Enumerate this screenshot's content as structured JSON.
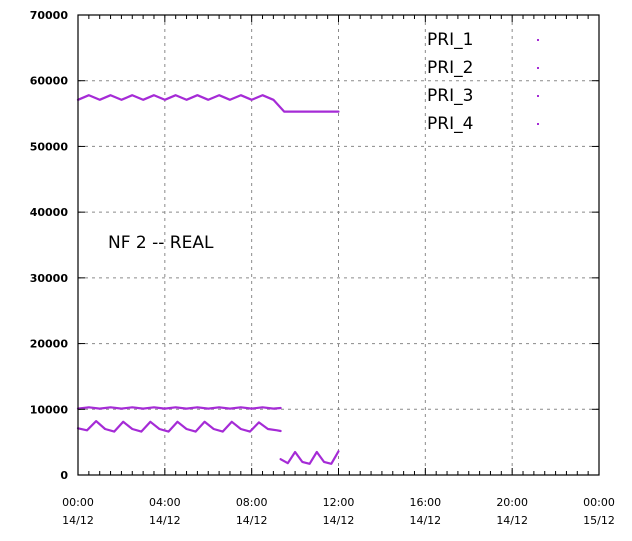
{
  "chart_data": {
    "type": "line",
    "title": "",
    "xlabel": "",
    "ylabel": "",
    "annotation": "NF 2 -- REAL",
    "ylim": [
      0,
      70000
    ],
    "y_ticks": [
      "0",
      "10000",
      "20000",
      "30000",
      "40000",
      "50000",
      "60000",
      "70000"
    ],
    "xlim_hours": [
      0,
      48
    ],
    "x_ticks": [
      {
        "time": "00:00",
        "date": "14/12"
      },
      {
        "time": "04:00",
        "date": "14/12"
      },
      {
        "time": "08:00",
        "date": "14/12"
      },
      {
        "time": "12:00",
        "date": "14/12"
      },
      {
        "time": "16:00",
        "date": "14/12"
      },
      {
        "time": "20:00",
        "date": "14/12"
      },
      {
        "time": "00:00",
        "date": "15/12"
      }
    ],
    "grid": true,
    "legend_position": "top-right",
    "series_color": "#a52bd6",
    "series": [
      {
        "name": "PRI_1",
        "x": [
          "00:00",
          "01:00",
          "02:00",
          "03:00",
          "04:00",
          "05:00",
          "06:00",
          "07:00",
          "08:00",
          "09:00",
          "10:00",
          "11:00",
          "12:00",
          "13:00",
          "14:00",
          "15:00",
          "16:00",
          "17:00",
          "18:00",
          "19:00",
          "20:00",
          "21:00",
          "22:00",
          "23:00",
          "24:00"
        ],
        "values": [
          57100,
          57800,
          57100,
          57800,
          57100,
          57800,
          57100,
          57800,
          57100,
          57800,
          57100,
          57800,
          57100,
          57800,
          57100,
          57800,
          57100,
          57800,
          57100,
          55300,
          55300,
          55300,
          55300,
          55300,
          55300
        ]
      },
      {
        "name": "PRI_2",
        "x": [
          "00:00",
          "01:00",
          "02:00",
          "03:00",
          "04:00",
          "05:00",
          "06:00",
          "07:00",
          "08:00",
          "09:00",
          "10:00",
          "11:00",
          "12:00",
          "13:00",
          "14:00",
          "15:00",
          "16:00",
          "17:00",
          "18:00",
          "18:40"
        ],
        "values": [
          10100,
          10300,
          10100,
          10300,
          10100,
          10300,
          10100,
          10300,
          10100,
          10300,
          10100,
          10300,
          10100,
          10300,
          10100,
          10300,
          10100,
          10300,
          10100,
          10200
        ]
      },
      {
        "name": "PRI_3",
        "x": [
          "00:00",
          "00:50",
          "01:40",
          "02:30",
          "03:20",
          "04:10",
          "05:00",
          "05:50",
          "06:40",
          "07:30",
          "08:20",
          "09:10",
          "10:00",
          "10:50",
          "11:40",
          "12:30",
          "13:20",
          "14:10",
          "15:00",
          "15:50",
          "16:40",
          "17:30",
          "18:20",
          "18:40"
        ],
        "values": [
          7100,
          6800,
          8200,
          7000,
          6600,
          8100,
          7000,
          6600,
          8100,
          7000,
          6600,
          8100,
          7000,
          6600,
          8100,
          7000,
          6600,
          8100,
          7000,
          6600,
          8000,
          7000,
          6800,
          6700
        ]
      },
      {
        "name": "PRI_4",
        "x": [
          "18:40",
          "19:20",
          "20:00",
          "20:40",
          "21:20",
          "22:00",
          "22:40",
          "23:20",
          "24:00"
        ],
        "values": [
          2400,
          1800,
          3500,
          2000,
          1700,
          3500,
          2000,
          1700,
          3600
        ]
      }
    ]
  }
}
